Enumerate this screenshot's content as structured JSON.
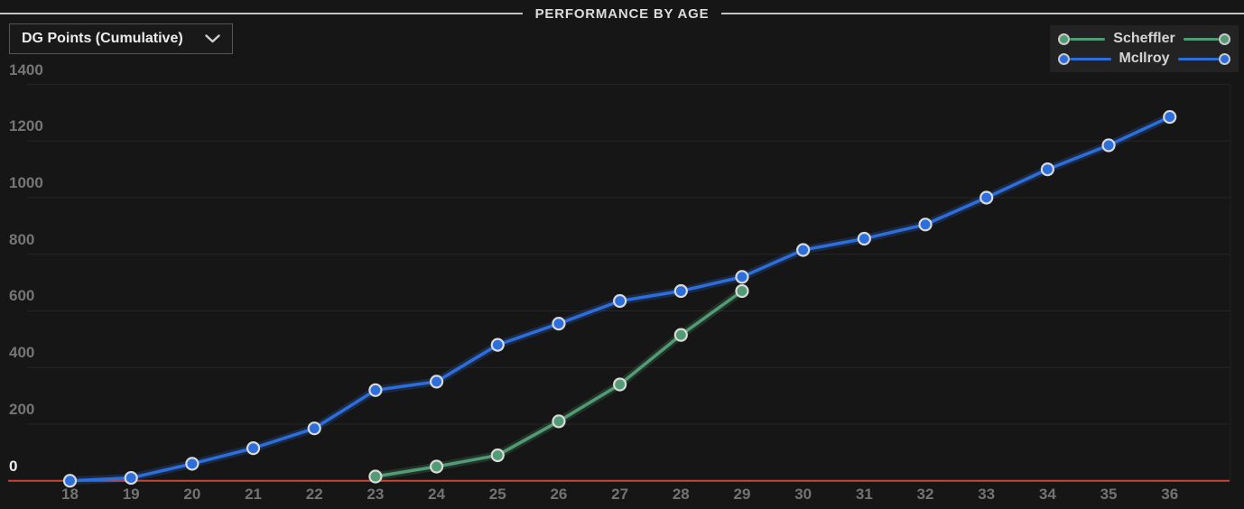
{
  "header": {
    "title": "PERFORMANCE BY AGE"
  },
  "controls": {
    "metric_dropdown": {
      "value": "DG Points (Cumulative)",
      "chevron_icon": "chevron-down"
    }
  },
  "legend": {
    "position": "top-right",
    "items": [
      {
        "label": "Scheffler",
        "color": "#519c74"
      },
      {
        "label": "McIlroy",
        "color": "#2d6edd"
      }
    ]
  },
  "colors": {
    "background": "#161616",
    "grid_line": "#262626",
    "zero_line": "#c74634",
    "tick_label": "#767676",
    "tick_label_zero": "#ececec",
    "marker_ring": "#d9d9d9",
    "header_rule": "#c4c4c4",
    "legend_panel": "#232323"
  },
  "chart_data": {
    "type": "line",
    "title": "PERFORMANCE BY AGE",
    "metric_label": "DG Points (Cumulative)",
    "xlabel": "",
    "ylabel": "",
    "xlim": [
      18,
      36
    ],
    "ylim": [
      0,
      1400
    ],
    "x_ticks": [
      18,
      19,
      20,
      21,
      22,
      23,
      24,
      25,
      26,
      27,
      28,
      29,
      30,
      31,
      32,
      33,
      34,
      35,
      36
    ],
    "y_ticks": [
      0,
      200,
      400,
      600,
      800,
      1000,
      1200,
      1400
    ],
    "grid": "horizontal",
    "legend_position": "top-right",
    "zero_line_color": "#c74634",
    "series": [
      {
        "name": "Scheffler",
        "color": "#519c74",
        "x": [
          23,
          24,
          25,
          26,
          27,
          28,
          29
        ],
        "values": [
          15,
          50,
          90,
          210,
          340,
          515,
          670
        ]
      },
      {
        "name": "McIlroy",
        "color": "#2d6edd",
        "x": [
          18,
          19,
          20,
          21,
          22,
          23,
          24,
          25,
          26,
          27,
          28,
          29,
          30,
          31,
          32,
          33,
          34,
          35,
          36
        ],
        "values": [
          0,
          10,
          60,
          115,
          185,
          320,
          350,
          480,
          555,
          635,
          670,
          720,
          815,
          855,
          905,
          1000,
          1100,
          1185,
          1285
        ]
      }
    ]
  }
}
